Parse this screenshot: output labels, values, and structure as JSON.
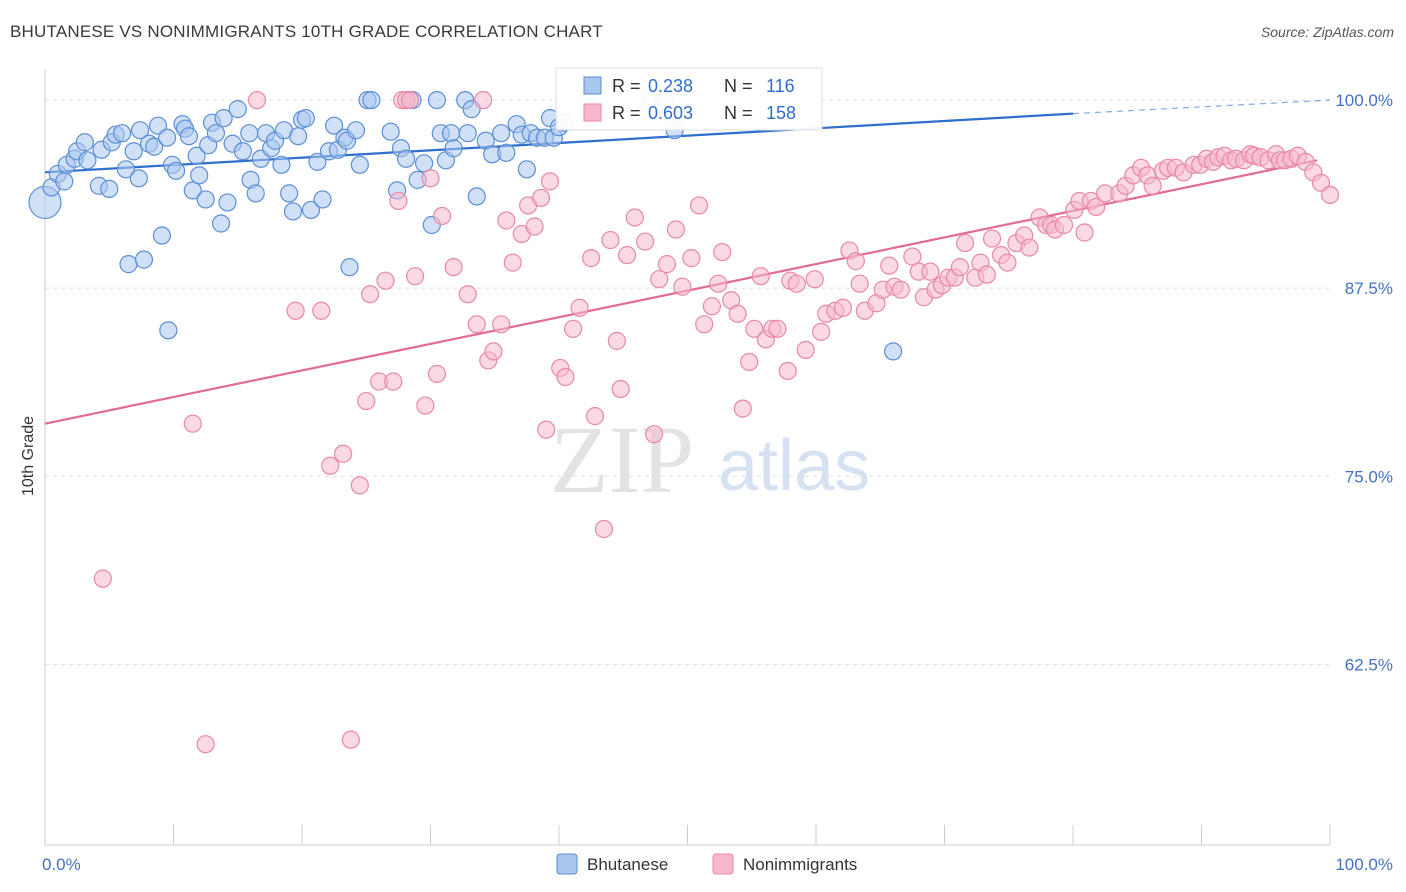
{
  "title": "BHUTANESE VS NONIMMIGRANTS 10TH GRADE CORRELATION CHART",
  "source": "Source: ZipAtlas.com",
  "watermark": {
    "zip": "ZIP",
    "atlas": "atlas"
  },
  "colors": {
    "blue_fill": "#a9c6ee",
    "blue_stroke": "#5b8fd6",
    "blue_line": "#2f6fcf",
    "pink_fill": "#f6b9cc",
    "pink_stroke": "#e888a8",
    "pink_line": "#e26a93",
    "tick_label": "#4472c4",
    "grid": "#dddddd"
  },
  "stats": [
    {
      "r_label": "R =",
      "r_value": "0.238",
      "n_label": "N =",
      "n_value": "116"
    },
    {
      "r_label": "R =",
      "r_value": "0.603",
      "n_label": "N =",
      "n_value": "158"
    }
  ],
  "legend": [
    "Bhutanese",
    "Nonimmigrants"
  ],
  "chart_data": {
    "type": "scatter",
    "title": "BHUTANESE VS NONIMMIGRANTS 10TH GRADE CORRELATION CHART",
    "xlabel": "",
    "ylabel": "10th Grade",
    "xlim": [
      0,
      100
    ],
    "ylim": [
      50.5,
      102
    ],
    "x_tick_labels": [
      "0.0%",
      "100.0%"
    ],
    "y_ticks": [
      62.5,
      75.0,
      87.5,
      100.0
    ],
    "y_tick_labels": [
      "62.5%",
      "75.0%",
      "87.5%",
      "100.0%"
    ],
    "grid": true,
    "legend_position": "bottom-center",
    "series": [
      {
        "name": "Bhutanese",
        "r": 0.238,
        "n": 116,
        "trend": {
          "x": [
            0,
            80
          ],
          "y": [
            95.2,
            99.1
          ],
          "dashed_to": [
            100,
            100.0
          ]
        },
        "points": [
          [
            0,
            93.2
          ],
          [
            0.5,
            94.2
          ],
          [
            1,
            95.1
          ],
          [
            1.5,
            94.6
          ],
          [
            1.7,
            95.7
          ],
          [
            2.3,
            96.1
          ],
          [
            2.5,
            96.6
          ],
          [
            3.1,
            97.2
          ],
          [
            3.3,
            96.0
          ],
          [
            4.2,
            94.3
          ],
          [
            4.4,
            96.7
          ],
          [
            5,
            94.1
          ],
          [
            5.2,
            97.2
          ],
          [
            5.5,
            97.7
          ],
          [
            6,
            97.8
          ],
          [
            6.3,
            95.4
          ],
          [
            6.5,
            89.1
          ],
          [
            6.9,
            96.6
          ],
          [
            7.3,
            94.8
          ],
          [
            7.4,
            98.0
          ],
          [
            7.7,
            89.4
          ],
          [
            8.1,
            97.1
          ],
          [
            8.5,
            96.9
          ],
          [
            8.8,
            98.3
          ],
          [
            9.1,
            91.0
          ],
          [
            9.5,
            97.5
          ],
          [
            9.6,
            84.7
          ],
          [
            9.9,
            95.7
          ],
          [
            10.2,
            95.3
          ],
          [
            10.7,
            98.4
          ],
          [
            10.9,
            98.1
          ],
          [
            11.2,
            97.6
          ],
          [
            11.5,
            94.0
          ],
          [
            11.8,
            96.3
          ],
          [
            12,
            95.0
          ],
          [
            12.5,
            93.4
          ],
          [
            12.7,
            97.0
          ],
          [
            13,
            98.5
          ],
          [
            13.3,
            97.8
          ],
          [
            13.7,
            91.8
          ],
          [
            13.9,
            98.8
          ],
          [
            14.2,
            93.2
          ],
          [
            14.6,
            97.1
          ],
          [
            15,
            99.4
          ],
          [
            15.4,
            96.6
          ],
          [
            15.9,
            97.8
          ],
          [
            16,
            94.7
          ],
          [
            16.4,
            93.8
          ],
          [
            16.8,
            96.1
          ],
          [
            17.2,
            97.8
          ],
          [
            17.6,
            96.8
          ],
          [
            17.9,
            97.3
          ],
          [
            18.4,
            95.7
          ],
          [
            18.6,
            98.0
          ],
          [
            19,
            93.8
          ],
          [
            19.3,
            92.6
          ],
          [
            19.7,
            97.6
          ],
          [
            20,
            98.7
          ],
          [
            20.3,
            98.8
          ],
          [
            20.7,
            92.7
          ],
          [
            21.2,
            95.9
          ],
          [
            21.6,
            93.4
          ],
          [
            22.1,
            96.6
          ],
          [
            22.5,
            98.3
          ],
          [
            22.8,
            96.7
          ],
          [
            23.3,
            97.5
          ],
          [
            23.5,
            97.3
          ],
          [
            23.7,
            88.9
          ],
          [
            24.2,
            98.0
          ],
          [
            24.5,
            95.7
          ],
          [
            25.1,
            100.0
          ],
          [
            25.4,
            100.0
          ],
          [
            26.9,
            97.9
          ],
          [
            27.4,
            94.0
          ],
          [
            27.7,
            96.8
          ],
          [
            28.1,
            96.1
          ],
          [
            28.6,
            100.0
          ],
          [
            29,
            94.7
          ],
          [
            29.5,
            95.8
          ],
          [
            30.1,
            91.7
          ],
          [
            30.5,
            100.0
          ],
          [
            30.8,
            97.8
          ],
          [
            31.2,
            96.0
          ],
          [
            31.6,
            97.8
          ],
          [
            31.8,
            96.8
          ],
          [
            32.7,
            100.0
          ],
          [
            32.9,
            97.8
          ],
          [
            33.2,
            99.4
          ],
          [
            33.6,
            93.6
          ],
          [
            34.3,
            97.3
          ],
          [
            34.8,
            96.4
          ],
          [
            35.5,
            97.8
          ],
          [
            35.9,
            96.5
          ],
          [
            36.7,
            98.4
          ],
          [
            37.1,
            97.7
          ],
          [
            37.5,
            95.4
          ],
          [
            37.8,
            97.8
          ],
          [
            38.3,
            97.5
          ],
          [
            38.9,
            97.5
          ],
          [
            39.3,
            98.8
          ],
          [
            39.6,
            97.5
          ],
          [
            40,
            98.2
          ],
          [
            40.4,
            98.5
          ],
          [
            47.2,
            100.0
          ],
          [
            48.2,
            100.0
          ],
          [
            49,
            98.0
          ],
          [
            66,
            83.3
          ]
        ]
      },
      {
        "name": "Nonimmigrants",
        "r": 0.603,
        "n": 158,
        "trend": {
          "x": [
            0,
            99
          ],
          "y": [
            78.5,
            96.0
          ]
        },
        "points": [
          [
            4.5,
            68.2
          ],
          [
            11.5,
            78.5
          ],
          [
            12.5,
            57.2
          ],
          [
            16.5,
            100.0
          ],
          [
            19.5,
            86.0
          ],
          [
            21.5,
            86.0
          ],
          [
            22.2,
            75.7
          ],
          [
            23.2,
            76.5
          ],
          [
            23.8,
            57.5
          ],
          [
            24.5,
            74.4
          ],
          [
            25,
            80.0
          ],
          [
            25.3,
            87.1
          ],
          [
            26,
            81.3
          ],
          [
            26.5,
            88.0
          ],
          [
            27.1,
            81.3
          ],
          [
            27.5,
            93.3
          ],
          [
            27.8,
            100.0
          ],
          [
            28.1,
            100.0
          ],
          [
            28.4,
            100.0
          ],
          [
            28.8,
            88.3
          ],
          [
            29.6,
            79.7
          ],
          [
            30,
            94.8
          ],
          [
            30.5,
            81.8
          ],
          [
            30.9,
            92.3
          ],
          [
            31.8,
            88.9
          ],
          [
            32.9,
            87.1
          ],
          [
            33.6,
            85.1
          ],
          [
            34.1,
            100.0
          ],
          [
            34.5,
            82.7
          ],
          [
            34.9,
            83.3
          ],
          [
            35.5,
            85.1
          ],
          [
            35.9,
            92.0
          ],
          [
            36.4,
            89.2
          ],
          [
            37.1,
            91.1
          ],
          [
            37.6,
            93.0
          ],
          [
            38.1,
            91.6
          ],
          [
            38.6,
            93.5
          ],
          [
            39,
            78.1
          ],
          [
            39.3,
            94.6
          ],
          [
            40.1,
            82.2
          ],
          [
            40.5,
            81.6
          ],
          [
            41.1,
            84.8
          ],
          [
            41.6,
            86.2
          ],
          [
            42.5,
            89.5
          ],
          [
            42.8,
            79.0
          ],
          [
            43.5,
            71.5
          ],
          [
            44,
            90.7
          ],
          [
            44.5,
            84.0
          ],
          [
            44.8,
            80.8
          ],
          [
            45.3,
            89.7
          ],
          [
            45.9,
            92.2
          ],
          [
            46.7,
            90.6
          ],
          [
            47.4,
            77.8
          ],
          [
            47.8,
            88.1
          ],
          [
            48.4,
            89.1
          ],
          [
            49.1,
            91.4
          ],
          [
            49.6,
            87.6
          ],
          [
            50.3,
            89.5
          ],
          [
            50.9,
            93.0
          ],
          [
            51.3,
            85.1
          ],
          [
            51.9,
            86.3
          ],
          [
            52.4,
            87.8
          ],
          [
            52.7,
            89.9
          ],
          [
            53.4,
            86.7
          ],
          [
            53.9,
            85.8
          ],
          [
            54.3,
            79.5
          ],
          [
            54.8,
            82.6
          ],
          [
            55.2,
            84.8
          ],
          [
            55.7,
            88.3
          ],
          [
            56.1,
            84.1
          ],
          [
            56.6,
            84.8
          ],
          [
            57,
            84.8
          ],
          [
            57.8,
            82.0
          ],
          [
            58,
            88.0
          ],
          [
            58.5,
            87.8
          ],
          [
            59.2,
            83.4
          ],
          [
            59.9,
            88.1
          ],
          [
            60.4,
            84.6
          ],
          [
            60.8,
            85.8
          ],
          [
            61.5,
            86.0
          ],
          [
            62.1,
            86.2
          ],
          [
            62.6,
            90.0
          ],
          [
            63.1,
            89.3
          ],
          [
            63.4,
            87.8
          ],
          [
            63.8,
            86.0
          ],
          [
            64.7,
            86.5
          ],
          [
            65.2,
            87.4
          ],
          [
            65.7,
            89.0
          ],
          [
            66.1,
            87.6
          ],
          [
            66.6,
            87.4
          ],
          [
            67.5,
            89.6
          ],
          [
            68,
            88.6
          ],
          [
            68.4,
            86.9
          ],
          [
            68.9,
            88.6
          ],
          [
            69.3,
            87.4
          ],
          [
            69.8,
            87.7
          ],
          [
            70.3,
            88.2
          ],
          [
            70.8,
            88.2
          ],
          [
            71.2,
            88.9
          ],
          [
            71.6,
            90.5
          ],
          [
            72.4,
            88.2
          ],
          [
            72.8,
            89.2
          ],
          [
            73.3,
            88.4
          ],
          [
            73.7,
            90.8
          ],
          [
            74.4,
            89.7
          ],
          [
            74.9,
            89.2
          ],
          [
            75.6,
            90.5
          ],
          [
            76.2,
            91.0
          ],
          [
            76.6,
            90.2
          ],
          [
            77.4,
            92.2
          ],
          [
            77.9,
            91.7
          ],
          [
            78.3,
            91.7
          ],
          [
            78.6,
            91.4
          ],
          [
            79.3,
            91.7
          ],
          [
            80.1,
            92.7
          ],
          [
            80.5,
            93.3
          ],
          [
            80.9,
            91.2
          ],
          [
            81.4,
            93.3
          ],
          [
            81.8,
            92.9
          ],
          [
            82.5,
            93.8
          ],
          [
            83.6,
            93.8
          ],
          [
            84.1,
            94.3
          ],
          [
            84.7,
            95.0
          ],
          [
            85.3,
            95.5
          ],
          [
            85.8,
            95.0
          ],
          [
            86.2,
            94.3
          ],
          [
            87,
            95.3
          ],
          [
            87.4,
            95.5
          ],
          [
            88,
            95.5
          ],
          [
            88.6,
            95.2
          ],
          [
            89.4,
            95.7
          ],
          [
            89.9,
            95.7
          ],
          [
            90.4,
            96.1
          ],
          [
            90.9,
            95.9
          ],
          [
            91.3,
            96.2
          ],
          [
            91.8,
            96.3
          ],
          [
            92.3,
            96.0
          ],
          [
            92.7,
            96.1
          ],
          [
            93.3,
            96.0
          ],
          [
            93.8,
            96.4
          ],
          [
            94.1,
            96.3
          ],
          [
            94.6,
            96.2
          ],
          [
            95.2,
            96.0
          ],
          [
            95.8,
            96.4
          ],
          [
            96.1,
            96.0
          ],
          [
            96.5,
            96.0
          ],
          [
            97,
            96.1
          ],
          [
            97.5,
            96.3
          ],
          [
            98.1,
            95.9
          ],
          [
            98.7,
            95.2
          ],
          [
            99.3,
            94.5
          ],
          [
            100,
            93.7
          ]
        ]
      }
    ]
  }
}
